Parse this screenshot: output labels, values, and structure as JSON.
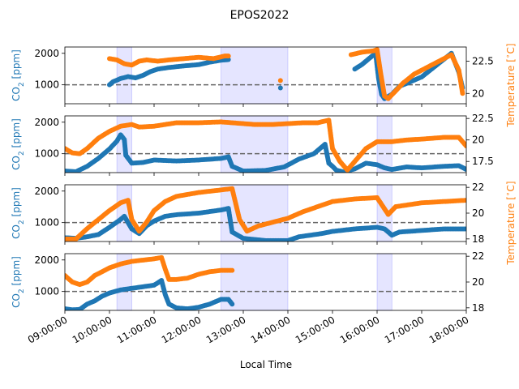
{
  "title": "EPOS2022",
  "xlabel": "Local Time",
  "x_ticks": [
    "09:00:00",
    "10:00:00",
    "11:00:00",
    "12:00:00",
    "13:00:00",
    "14:00:00",
    "15:00:00",
    "16:00:00",
    "17:00:00",
    "18:00:00"
  ],
  "colors": {
    "co2": "#1f77b4",
    "temp": "#ff7f0e",
    "span": "#0000ff",
    "ref": "#666666"
  },
  "chart_data": [
    {
      "type": "scatter",
      "panel": 1,
      "ylabel_left": "CO$_2$ [ppm]",
      "ylabel_right": "Temperature [$^\\circ$C]",
      "ylim_left": [
        400,
        2200
      ],
      "ylim_right": [
        19.2,
        23.6
      ],
      "yticks_left": [
        1000,
        2000
      ],
      "yticks_right": [
        20.0,
        22.5
      ],
      "ref_line_co2": 1000,
      "shaded_intervals": [
        [
          "10:10",
          "10:30"
        ],
        [
          "12:30",
          "14:00"
        ],
        [
          "16:00",
          "16:20"
        ]
      ],
      "series": [
        {
          "name_hint": "co2",
          "points": [
            [
              "10:00",
              1000
            ],
            [
              "10:05",
              1100
            ],
            [
              "10:15",
              1200
            ],
            [
              "10:25",
              1260
            ],
            [
              "10:35",
              1220
            ],
            [
              "10:45",
              1300
            ],
            [
              "10:55",
              1420
            ],
            [
              "11:05",
              1500
            ],
            [
              "11:20",
              1550
            ],
            [
              "11:40",
              1600
            ],
            [
              "12:00",
              1640
            ],
            [
              "12:15",
              1720
            ],
            [
              "12:30",
              1780
            ],
            [
              "12:40",
              1800
            ],
            [
              "13:50",
              900
            ],
            [
              "15:30",
              1500
            ],
            [
              "15:40",
              1650
            ],
            [
              "15:50",
              1850
            ],
            [
              "15:58",
              2000
            ],
            [
              "16:02",
              1200
            ],
            [
              "16:06",
              700
            ],
            [
              "16:10",
              560
            ],
            [
              "16:20",
              700
            ],
            [
              "16:30",
              950
            ],
            [
              "16:45",
              1100
            ],
            [
              "17:00",
              1250
            ],
            [
              "17:40",
              2000
            ],
            [
              "17:50",
              1400
            ],
            [
              "17:55",
              900
            ]
          ]
        },
        {
          "name_hint": "temp",
          "points": [
            [
              "10:00",
              22.7
            ],
            [
              "10:10",
              22.6
            ],
            [
              "10:20",
              22.3
            ],
            [
              "10:30",
              22.2
            ],
            [
              "10:40",
              22.5
            ],
            [
              "10:50",
              22.6
            ],
            [
              "11:05",
              22.5
            ],
            [
              "11:20",
              22.6
            ],
            [
              "11:40",
              22.7
            ],
            [
              "12:00",
              22.8
            ],
            [
              "12:20",
              22.7
            ],
            [
              "12:35",
              22.9
            ],
            [
              "12:40",
              22.9
            ],
            [
              "13:50",
              21.0
            ],
            [
              "15:25",
              23.0
            ],
            [
              "15:40",
              23.2
            ],
            [
              "15:55",
              23.3
            ],
            [
              "16:00",
              23.4
            ],
            [
              "16:05",
              21.5
            ],
            [
              "16:10",
              19.8
            ],
            [
              "16:15",
              19.6
            ],
            [
              "16:25",
              20.2
            ],
            [
              "16:35",
              20.8
            ],
            [
              "16:50",
              21.5
            ],
            [
              "17:00",
              21.8
            ],
            [
              "17:40",
              23.0
            ],
            [
              "17:50",
              21.8
            ],
            [
              "17:55",
              20.0
            ]
          ]
        }
      ]
    },
    {
      "type": "scatter",
      "panel": 2,
      "ylabel_left": "CO$_2$ [ppm]",
      "ylabel_right": "",
      "ylim_left": [
        400,
        2200
      ],
      "ylim_right": [
        16.2,
        22.8
      ],
      "yticks_left": [
        1000,
        2000
      ],
      "yticks_right": [
        17.5,
        20.0,
        22.5
      ],
      "ref_line_co2": 1000,
      "shaded_intervals": [
        [
          "10:10",
          "10:30"
        ],
        [
          "12:30",
          "14:00"
        ],
        [
          "16:00",
          "16:20"
        ]
      ],
      "series": [
        {
          "name_hint": "co2",
          "points": [
            [
              "09:00",
              450
            ],
            [
              "09:15",
              430
            ],
            [
              "09:30",
              600
            ],
            [
              "09:45",
              850
            ],
            [
              "10:00",
              1150
            ],
            [
              "10:10",
              1400
            ],
            [
              "10:15",
              1600
            ],
            [
              "10:20",
              1450
            ],
            [
              "10:22",
              950
            ],
            [
              "10:30",
              700
            ],
            [
              "10:45",
              720
            ],
            [
              "11:00",
              800
            ],
            [
              "11:30",
              770
            ],
            [
              "12:00",
              800
            ],
            [
              "12:30",
              850
            ],
            [
              "12:40",
              900
            ],
            [
              "12:45",
              600
            ],
            [
              "13:00",
              450
            ],
            [
              "13:30",
              470
            ],
            [
              "13:55",
              580
            ],
            [
              "14:15",
              830
            ],
            [
              "14:35",
              1000
            ],
            [
              "14:50",
              1300
            ],
            [
              "14:55",
              700
            ],
            [
              "15:00",
              600
            ],
            [
              "15:05",
              480
            ],
            [
              "15:15",
              420
            ],
            [
              "15:30",
              520
            ],
            [
              "15:45",
              700
            ],
            [
              "16:00",
              650
            ],
            [
              "16:10",
              550
            ],
            [
              "16:20",
              500
            ],
            [
              "16:40",
              580
            ],
            [
              "17:00",
              550
            ],
            [
              "17:30",
              600
            ],
            [
              "17:50",
              620
            ],
            [
              "18:00",
              500
            ]
          ]
        },
        {
          "name_hint": "temp",
          "points": [
            [
              "09:00",
              19.0
            ],
            [
              "09:10",
              18.5
            ],
            [
              "09:20",
              18.4
            ],
            [
              "09:30",
              19.0
            ],
            [
              "09:45",
              20.2
            ],
            [
              "10:00",
              21.0
            ],
            [
              "10:15",
              21.6
            ],
            [
              "10:30",
              21.8
            ],
            [
              "10:40",
              21.5
            ],
            [
              "11:00",
              21.6
            ],
            [
              "11:30",
              22.0
            ],
            [
              "12:00",
              22.0
            ],
            [
              "12:30",
              22.1
            ],
            [
              "12:45",
              22.0
            ],
            [
              "13:15",
              21.8
            ],
            [
              "13:40",
              21.8
            ],
            [
              "14:00",
              21.9
            ],
            [
              "14:20",
              22.0
            ],
            [
              "14:40",
              22.0
            ],
            [
              "14:55",
              22.3
            ],
            [
              "15:00",
              19.0
            ],
            [
              "15:10",
              17.5
            ],
            [
              "15:20",
              16.5
            ],
            [
              "15:30",
              17.5
            ],
            [
              "15:45",
              19.0
            ],
            [
              "16:00",
              19.8
            ],
            [
              "16:20",
              19.8
            ],
            [
              "16:40",
              20.0
            ],
            [
              "17:00",
              20.1
            ],
            [
              "17:30",
              20.3
            ],
            [
              "17:50",
              20.3
            ],
            [
              "18:00",
              19.3
            ]
          ]
        }
      ]
    },
    {
      "type": "scatter",
      "panel": 3,
      "ylabel_left": "CO$_2$ [ppm]",
      "ylabel_right": "Temperature [$^\\circ$C]",
      "ylim_left": [
        400,
        2200
      ],
      "ylim_right": [
        17.8,
        22.2
      ],
      "yticks_left": [
        1000,
        2000
      ],
      "yticks_right": [
        18,
        20,
        22
      ],
      "ref_line_co2": 1000,
      "shaded_intervals": [
        [
          "10:10",
          "10:30"
        ],
        [
          "12:30",
          "14:00"
        ],
        [
          "16:00",
          "16:20"
        ]
      ],
      "series": [
        {
          "name_hint": "co2",
          "points": [
            [
              "09:00",
              520
            ],
            [
              "09:15",
              500
            ],
            [
              "09:30",
              550
            ],
            [
              "09:45",
              620
            ],
            [
              "10:00",
              850
            ],
            [
              "10:15",
              1100
            ],
            [
              "10:20",
              1200
            ],
            [
              "10:30",
              800
            ],
            [
              "10:40",
              650
            ],
            [
              "10:50",
              900
            ],
            [
              "11:00",
              1050
            ],
            [
              "11:15",
              1200
            ],
            [
              "11:30",
              1250
            ],
            [
              "12:00",
              1300
            ],
            [
              "12:30",
              1400
            ],
            [
              "12:40",
              1450
            ],
            [
              "12:45",
              700
            ],
            [
              "13:00",
              500
            ],
            [
              "13:30",
              430
            ],
            [
              "14:00",
              430
            ],
            [
              "14:15",
              550
            ],
            [
              "14:45",
              650
            ],
            [
              "15:00",
              720
            ],
            [
              "15:30",
              800
            ],
            [
              "16:00",
              850
            ],
            [
              "16:10",
              800
            ],
            [
              "16:20",
              600
            ],
            [
              "16:30",
              700
            ],
            [
              "17:00",
              750
            ],
            [
              "17:30",
              800
            ],
            [
              "18:00",
              800
            ],
            [
              "18:10",
              750
            ]
          ]
        },
        {
          "name_hint": "temp",
          "points": [
            [
              "09:00",
              18.0
            ],
            [
              "09:15",
              18.0
            ],
            [
              "09:30",
              18.8
            ],
            [
              "09:45",
              19.5
            ],
            [
              "10:00",
              20.2
            ],
            [
              "10:15",
              20.8
            ],
            [
              "10:25",
              21.0
            ],
            [
              "10:30",
              19.5
            ],
            [
              "10:40",
              18.6
            ],
            [
              "10:50",
              19.3
            ],
            [
              "11:00",
              20.2
            ],
            [
              "11:15",
              20.9
            ],
            [
              "11:30",
              21.3
            ],
            [
              "12:00",
              21.6
            ],
            [
              "12:30",
              21.8
            ],
            [
              "12:45",
              21.9
            ],
            [
              "12:55",
              19.5
            ],
            [
              "13:05",
              18.6
            ],
            [
              "13:20",
              19.0
            ],
            [
              "13:40",
              19.3
            ],
            [
              "14:00",
              19.6
            ],
            [
              "14:20",
              20.1
            ],
            [
              "14:40",
              20.5
            ],
            [
              "15:00",
              20.9
            ],
            [
              "15:30",
              21.1
            ],
            [
              "16:00",
              21.2
            ],
            [
              "16:15",
              19.9
            ],
            [
              "16:25",
              20.5
            ],
            [
              "17:00",
              20.8
            ],
            [
              "17:30",
              20.9
            ],
            [
              "18:00",
              21.0
            ],
            [
              "18:15",
              21.0
            ]
          ]
        }
      ]
    },
    {
      "type": "scatter",
      "panel": 4,
      "ylabel_left": "CO$_2$ [ppm]",
      "ylabel_right": "",
      "ylim_left": [
        400,
        2200
      ],
      "ylim_right": [
        17.8,
        22.2
      ],
      "yticks_left": [
        1000,
        2000
      ],
      "yticks_right": [
        18,
        20,
        22
      ],
      "ref_line_co2": 1000,
      "shaded_intervals": [
        [
          "10:10",
          "10:30"
        ],
        [
          "12:30",
          "14:00"
        ],
        [
          "16:00",
          "16:20"
        ]
      ],
      "series": [
        {
          "name_hint": "co2",
          "points": [
            [
              "09:00",
              450
            ],
            [
              "09:10",
              420
            ],
            [
              "09:20",
              430
            ],
            [
              "09:30",
              600
            ],
            [
              "09:40",
              700
            ],
            [
              "09:50",
              850
            ],
            [
              "10:00",
              950
            ],
            [
              "10:15",
              1050
            ],
            [
              "10:30",
              1100
            ],
            [
              "10:45",
              1150
            ],
            [
              "11:00",
              1200
            ],
            [
              "11:10",
              1350
            ],
            [
              "11:15",
              900
            ],
            [
              "11:20",
              600
            ],
            [
              "11:30",
              480
            ],
            [
              "11:45",
              450
            ],
            [
              "12:00",
              500
            ],
            [
              "12:15",
              600
            ],
            [
              "12:30",
              750
            ],
            [
              "12:40",
              750
            ],
            [
              "12:45",
              600
            ]
          ]
        },
        {
          "name_hint": "temp",
          "points": [
            [
              "09:00",
              20.5
            ],
            [
              "09:10",
              20.0
            ],
            [
              "09:20",
              19.8
            ],
            [
              "09:30",
              20.0
            ],
            [
              "09:40",
              20.5
            ],
            [
              "10:00",
              21.1
            ],
            [
              "10:15",
              21.4
            ],
            [
              "10:30",
              21.6
            ],
            [
              "10:45",
              21.7
            ],
            [
              "11:00",
              21.8
            ],
            [
              "11:10",
              21.9
            ],
            [
              "11:15",
              21.0
            ],
            [
              "11:20",
              20.2
            ],
            [
              "11:30",
              20.2
            ],
            [
              "11:45",
              20.3
            ],
            [
              "12:00",
              20.6
            ],
            [
              "12:15",
              20.8
            ],
            [
              "12:30",
              20.9
            ],
            [
              "12:45",
              20.9
            ]
          ]
        }
      ]
    }
  ]
}
